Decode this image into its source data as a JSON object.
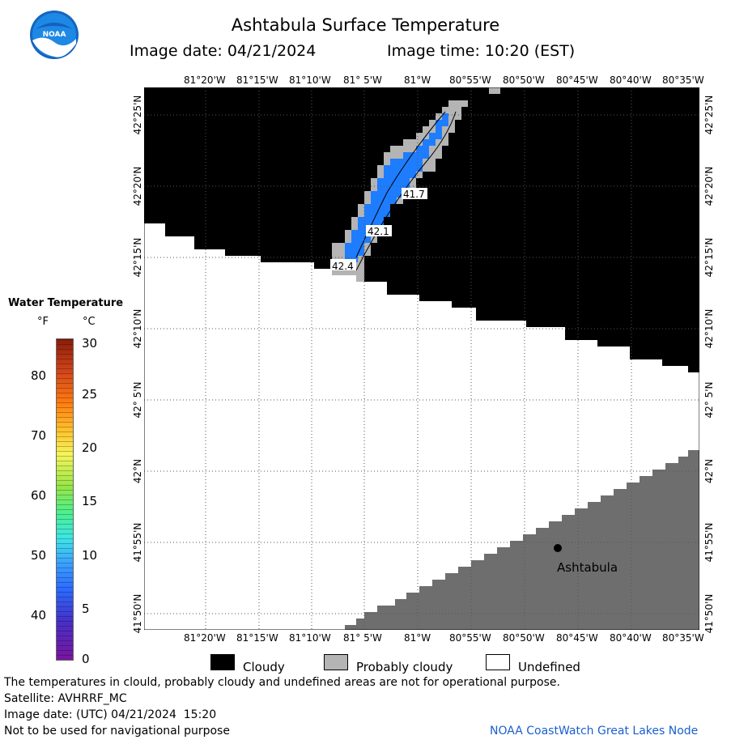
{
  "header": {
    "title": "Ashtabula Surface Temperature",
    "image_date": "Image date: 04/21/2024",
    "image_time": "Image time: 10:20 (EST)"
  },
  "logo": {
    "text": "NOAA"
  },
  "map": {
    "lon_labels": [
      "81°20'W",
      "81°15'W",
      "81°10'W",
      "81° 5'W",
      "81°W",
      "80°55'W",
      "80°50'W",
      "80°45'W",
      "80°40'W",
      "80°35'W"
    ],
    "lat_labels": [
      "42°25'N",
      "42°20'N",
      "42°15'N",
      "42°10'N",
      "42° 5'N",
      "42°N",
      "41°55'N",
      "41°50'N"
    ],
    "contour_labels": [
      "41.7",
      "42.1",
      "42.4"
    ],
    "place": "Ashtabula",
    "colors": {
      "cloud": "#000000",
      "probably_cloudy": "#b4b4b4",
      "undefined": "#ffffff",
      "land": "#6e6e6e",
      "water": "#1e7dff"
    }
  },
  "colorbar": {
    "title": "Water Temperature",
    "unit_f": "°F",
    "unit_c": "°C",
    "f_ticks": [
      "80",
      "70",
      "60",
      "50",
      "40"
    ],
    "c_ticks": [
      "30",
      "25",
      "20",
      "15",
      "10",
      "5",
      "0"
    ]
  },
  "legend": {
    "cloudy": "Cloudy",
    "probably_cloudy": "Probably cloudy",
    "undefined": "Undefined"
  },
  "footer": {
    "note": "The temperatures in clould, probably cloudy and undefined areas are not for operational purpose.",
    "satellite": "Satellite: AVHRRF_MC",
    "utc": "Image date: (UTC) 04/21/2024  15:20",
    "nav": "Not to be used for navigational purpose",
    "credit": "NOAA CoastWatch Great Lakes Node"
  }
}
